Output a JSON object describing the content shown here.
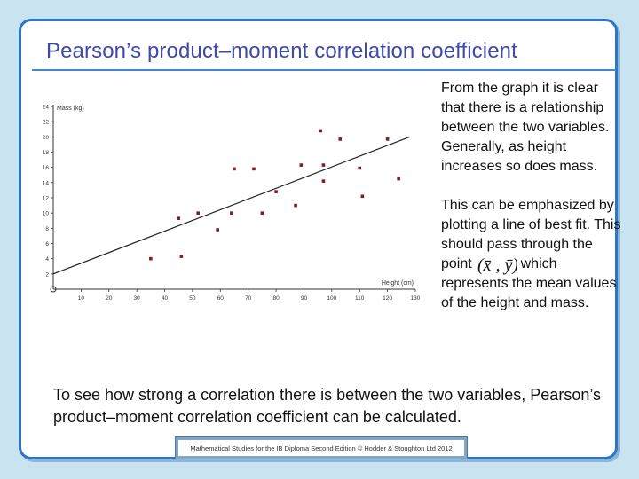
{
  "title": "Pearson’s product–moment correlation coefficient",
  "side_text": {
    "p1": "From the graph it is clear that there is a relationship between the two variables. Generally, as height increases so does mass.",
    "p2_a": "This can be emphasized by plotting a line of best fit. This should pass through the point",
    "point_symbol": "(x̄ , ȳ)",
    "p2_b": "which represents the mean values of the height and mass."
  },
  "bottom_text": "To see how strong a correlation there is between the two variables, Pearson’s product–moment correlation coefficient can be calculated.",
  "footer": "Mathematical Studies for the IB Diploma Second Edition © Hodder & Stoughton Ltd 2012",
  "colors": {
    "title": "#3f4aa8",
    "frame": "#2e74c9",
    "background": "#c9e3f0",
    "point": "#8b1a1a"
  },
  "chart_data": {
    "type": "scatter",
    "xlabel": "Height (cm)",
    "ylabel": "Mass (kg)",
    "xlim": [
      0,
      130
    ],
    "ylim": [
      0,
      24
    ],
    "xticks": [
      10,
      20,
      30,
      40,
      50,
      60,
      70,
      80,
      90,
      100,
      110,
      120,
      130
    ],
    "yticks": [
      2,
      4,
      6,
      8,
      10,
      12,
      14,
      16,
      18,
      20,
      22,
      24
    ],
    "grid": false,
    "points": [
      {
        "x": 35,
        "y": 4
      },
      {
        "x": 46,
        "y": 4.3
      },
      {
        "x": 45,
        "y": 9.3
      },
      {
        "x": 52,
        "y": 10
      },
      {
        "x": 59,
        "y": 7.8
      },
      {
        "x": 64,
        "y": 10
      },
      {
        "x": 65,
        "y": 15.8
      },
      {
        "x": 72,
        "y": 15.8
      },
      {
        "x": 75,
        "y": 10
      },
      {
        "x": 80,
        "y": 12.8
      },
      {
        "x": 87,
        "y": 11
      },
      {
        "x": 89,
        "y": 16.3
      },
      {
        "x": 96,
        "y": 20.8
      },
      {
        "x": 97,
        "y": 16.3
      },
      {
        "x": 97,
        "y": 14.2
      },
      {
        "x": 103,
        "y": 19.7
      },
      {
        "x": 110,
        "y": 15.9
      },
      {
        "x": 111,
        "y": 12.2
      },
      {
        "x": 120,
        "y": 19.7
      },
      {
        "x": 124,
        "y": 14.5
      }
    ],
    "best_fit": {
      "x": [
        0,
        128
      ],
      "y": [
        2,
        20
      ]
    }
  }
}
